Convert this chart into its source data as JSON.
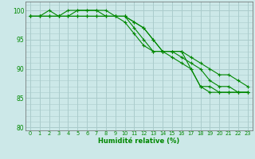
{
  "xlabel": "Humidité relative (%)",
  "background_color": "#cce8e8",
  "grid_color": "#aacccc",
  "line_color": "#008800",
  "xlim": [
    -0.5,
    23.5
  ],
  "ylim": [
    79.5,
    101.5
  ],
  "yticks": [
    80,
    85,
    90,
    95,
    100
  ],
  "xticks": [
    0,
    1,
    2,
    3,
    4,
    5,
    6,
    7,
    8,
    9,
    10,
    11,
    12,
    13,
    14,
    15,
    16,
    17,
    18,
    19,
    20,
    21,
    22,
    23
  ],
  "series": [
    [
      99,
      99,
      100,
      99,
      99,
      100,
      100,
      100,
      100,
      99,
      99,
      98,
      97,
      95,
      93,
      93,
      92,
      91,
      90,
      88,
      87,
      87,
      86,
      86
    ],
    [
      99,
      99,
      99,
      99,
      100,
      100,
      100,
      100,
      99,
      99,
      99,
      98,
      97,
      95,
      93,
      92,
      91,
      90,
      87,
      86,
      86,
      86,
      86,
      86
    ],
    [
      99,
      99,
      99,
      99,
      99,
      99,
      99,
      99,
      99,
      99,
      98,
      96,
      94,
      93,
      93,
      93,
      93,
      92,
      91,
      90,
      89,
      89,
      88,
      87
    ],
    [
      99,
      99,
      99,
      99,
      99,
      99,
      99,
      99,
      99,
      99,
      99,
      97,
      95,
      93,
      93,
      93,
      93,
      90,
      87,
      87,
      86,
      86,
      86,
      86
    ]
  ]
}
